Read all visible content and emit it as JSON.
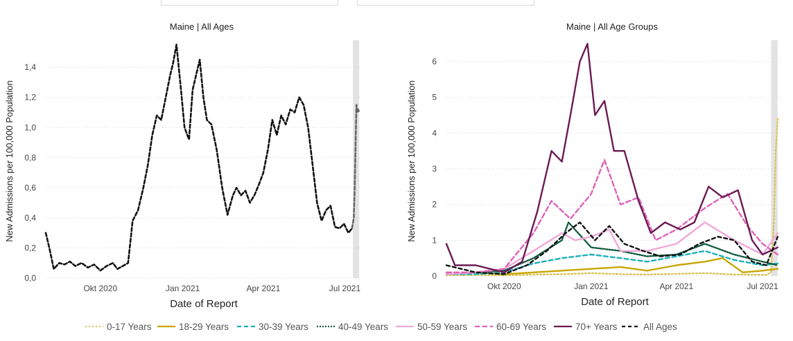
{
  "chart_data": [
    {
      "type": "line",
      "title": "Maine  |  All Ages",
      "xlabel": "Date of Report",
      "ylabel": "New Admissions per 100,000 Population",
      "x_ticks": [
        "Okt 2020",
        "Jan 2021",
        "Apr 2021",
        "Jul 2021"
      ],
      "y_ticks": [
        "0,0",
        "0,2",
        "0,4",
        "0,6",
        "0,8",
        "1,0",
        "1,2",
        "1,4"
      ],
      "ylim": [
        0,
        1.58
      ],
      "x_range": [
        "2020-08-01",
        "2021-07-20"
      ],
      "grid": "horizontal dotted",
      "shaded_region": [
        "2021-07-10",
        "2021-07-17"
      ],
      "series": [
        {
          "color": "#111111",
          "x": [
            "2020-08-01",
            "2020-08-05",
            "2020-08-10",
            "2020-08-16",
            "2020-08-22",
            "2020-08-28",
            "2020-09-03",
            "2020-09-10",
            "2020-09-17",
            "2020-09-24",
            "2020-10-01",
            "2020-10-08",
            "2020-10-15",
            "2020-10-20",
            "2020-10-26",
            "2020-11-01",
            "2020-11-06",
            "2020-11-12",
            "2020-11-18",
            "2020-11-23",
            "2020-11-28",
            "2020-12-03",
            "2020-12-08",
            "2020-12-13",
            "2020-12-18",
            "2020-12-21",
            "2020-12-25",
            "2020-12-30",
            "2021-01-03",
            "2021-01-08",
            "2021-01-12",
            "2021-01-16",
            "2021-01-20",
            "2021-01-24",
            "2021-01-28",
            "2021-02-02",
            "2021-02-08",
            "2021-02-14",
            "2021-02-20",
            "2021-02-26",
            "2021-03-02",
            "2021-03-07",
            "2021-03-12",
            "2021-03-17",
            "2021-03-22",
            "2021-03-27",
            "2021-04-01",
            "2021-04-06",
            "2021-04-11",
            "2021-04-16",
            "2021-04-21",
            "2021-04-26",
            "2021-05-01",
            "2021-05-06",
            "2021-05-11",
            "2021-05-16",
            "2021-05-21",
            "2021-05-26",
            "2021-05-31",
            "2021-06-05",
            "2021-06-10",
            "2021-06-15",
            "2021-06-20",
            "2021-06-25",
            "2021-06-30",
            "2021-07-05",
            "2021-07-09"
          ],
          "y": [
            0.3,
            0.2,
            0.06,
            0.1,
            0.09,
            0.11,
            0.08,
            0.1,
            0.07,
            0.09,
            0.05,
            0.08,
            0.1,
            0.06,
            0.08,
            0.1,
            0.38,
            0.45,
            0.6,
            0.75,
            0.95,
            1.08,
            1.05,
            1.2,
            1.35,
            1.42,
            1.55,
            1.25,
            1.0,
            0.92,
            1.25,
            1.35,
            1.45,
            1.2,
            1.05,
            1.02,
            0.85,
            0.6,
            0.42,
            0.55,
            0.6,
            0.55,
            0.58,
            0.5,
            0.55,
            0.62,
            0.7,
            0.85,
            1.05,
            0.95,
            1.08,
            1.02,
            1.12,
            1.1,
            1.2,
            1.15,
            1.0,
            0.75,
            0.5,
            0.38,
            0.45,
            0.48,
            0.34,
            0.33,
            0.36,
            0.3,
            0.33
          ]
        },
        {
          "color": "#666666",
          "x": [
            "2021-07-09",
            "2021-07-11",
            "2021-07-12",
            "2021-07-13",
            "2021-07-14",
            "2021-07-15",
            "2021-07-16",
            "2021-07-17"
          ],
          "y": [
            0.33,
            0.4,
            0.6,
            0.9,
            1.15,
            1.1,
            1.12,
            1.1
          ]
        }
      ]
    },
    {
      "type": "line",
      "title": "Maine  |  All Age Groups",
      "xlabel": "Date of Report",
      "ylabel": "New Admissions per 100,000 Population",
      "x_ticks": [
        "Okt 2020",
        "Jan 2021",
        "Apr 2021",
        "Jul 2021"
      ],
      "y_ticks": [
        "0",
        "1",
        "2",
        "3",
        "4",
        "5",
        "6"
      ],
      "ylim": [
        0,
        6.6
      ],
      "x_range": [
        "2020-08-01",
        "2021-07-20"
      ],
      "grid": "horizontal dotted",
      "shaded_region": [
        "2021-07-10",
        "2021-07-17"
      ],
      "legend_position": "bottom",
      "series": [
        {
          "name": "0-17 Years",
          "color": "#d8c45a",
          "dash": "2,3",
          "x": [
            "2020-08-01",
            "2020-09-01",
            "2020-10-01",
            "2020-11-01",
            "2020-12-01",
            "2021-01-01",
            "2021-02-01",
            "2021-03-01",
            "2021-04-01",
            "2021-05-01",
            "2021-06-01",
            "2021-07-05",
            "2021-07-10",
            "2021-07-13",
            "2021-07-15",
            "2021-07-17"
          ],
          "y": [
            0.02,
            0.03,
            0.02,
            0.04,
            0.05,
            0.08,
            0.05,
            0.04,
            0.06,
            0.08,
            0.04,
            0.03,
            0.1,
            1.5,
            3.5,
            4.4
          ]
        },
        {
          "name": "18-29 Years",
          "color": "#c9a500",
          "dash": "",
          "x": [
            "2020-08-01",
            "2020-09-01",
            "2020-10-01",
            "2020-11-01",
            "2020-12-01",
            "2021-01-01",
            "2021-02-01",
            "2021-03-01",
            "2021-04-01",
            "2021-05-01",
            "2021-05-20",
            "2021-06-10",
            "2021-07-01",
            "2021-07-17"
          ],
          "y": [
            0.05,
            0.1,
            0.05,
            0.1,
            0.15,
            0.2,
            0.25,
            0.15,
            0.3,
            0.4,
            0.5,
            0.1,
            0.15,
            0.2
          ]
        },
        {
          "name": "30-39 Years",
          "color": "#19b0b8",
          "dash": "6,4",
          "x": [
            "2020-08-01",
            "2020-09-01",
            "2020-10-01",
            "2020-11-01",
            "2020-12-01",
            "2021-01-01",
            "2021-02-01",
            "2021-03-01",
            "2021-04-01",
            "2021-05-01",
            "2021-06-01",
            "2021-07-01",
            "2021-07-17"
          ],
          "y": [
            0.05,
            0.05,
            0.1,
            0.35,
            0.5,
            0.6,
            0.5,
            0.4,
            0.55,
            0.7,
            0.45,
            0.3,
            0.35
          ]
        },
        {
          "name": "40-49 Years",
          "color": "#0f5a3e",
          "dash": "2,2",
          "x": [
            "2020-08-01",
            "2020-09-01",
            "2020-10-01",
            "2020-11-01",
            "2020-12-01",
            "2020-12-08",
            "2021-01-01",
            "2021-02-01",
            "2021-03-01",
            "2021-04-01",
            "2021-05-01",
            "2021-06-01",
            "2021-07-01",
            "2021-07-17"
          ],
          "y": [
            0.05,
            0.1,
            0.15,
            0.5,
            1.0,
            1.5,
            0.8,
            0.7,
            0.55,
            0.6,
            0.9,
            0.6,
            0.4,
            0.3
          ]
        },
        {
          "name": "50-59 Years",
          "color": "#f0a8d8",
          "dash": "",
          "x": [
            "2020-08-01",
            "2020-09-01",
            "2020-10-01",
            "2020-11-01",
            "2020-12-01",
            "2020-12-15",
            "2021-01-01",
            "2021-01-20",
            "2021-02-01",
            "2021-03-01",
            "2021-04-01",
            "2021-05-01",
            "2021-06-01",
            "2021-07-01",
            "2021-07-17"
          ],
          "y": [
            0.05,
            0.1,
            0.2,
            0.7,
            1.2,
            1.0,
            1.1,
            1.3,
            0.7,
            0.7,
            0.9,
            1.5,
            1.0,
            0.6,
            1.2
          ]
        },
        {
          "name": "60-69 Years",
          "color": "#e060b8",
          "dash": "7,4",
          "x": [
            "2020-08-01",
            "2020-09-01",
            "2020-10-01",
            "2020-11-01",
            "2020-11-20",
            "2020-12-10",
            "2021-01-01",
            "2021-01-15",
            "2021-02-01",
            "2021-02-20",
            "2021-03-10",
            "2021-04-01",
            "2021-05-01",
            "2021-05-25",
            "2021-06-15",
            "2021-07-01",
            "2021-07-17"
          ],
          "y": [
            0.1,
            0.1,
            0.2,
            1.2,
            2.1,
            1.6,
            2.3,
            3.25,
            2.0,
            2.2,
            1.0,
            1.3,
            1.9,
            2.3,
            1.4,
            0.9,
            0.6
          ]
        },
        {
          "name": "70+ Years",
          "color": "#6b1a52",
          "dash": "",
          "x": [
            "2020-08-01",
            "2020-08-10",
            "2020-09-01",
            "2020-10-01",
            "2020-10-20",
            "2020-11-05",
            "2020-11-20",
            "2020-12-01",
            "2020-12-10",
            "2020-12-20",
            "2020-12-28",
            "2021-01-05",
            "2021-01-15",
            "2021-01-25",
            "2021-02-05",
            "2021-02-20",
            "2021-03-05",
            "2021-03-20",
            "2021-04-05",
            "2021-04-20",
            "2021-05-05",
            "2021-05-20",
            "2021-06-05",
            "2021-06-20",
            "2021-07-01",
            "2021-07-17"
          ],
          "y": [
            0.9,
            0.3,
            0.3,
            0.1,
            0.4,
            1.8,
            3.5,
            3.2,
            4.5,
            6.0,
            6.5,
            4.5,
            4.9,
            3.5,
            3.5,
            2.1,
            1.2,
            1.5,
            1.3,
            1.5,
            2.5,
            2.2,
            2.4,
            1.0,
            0.6,
            0.8
          ]
        },
        {
          "name": "All Ages",
          "color": "#111111",
          "dash": "5,4",
          "x": [
            "2020-08-01",
            "2020-09-01",
            "2020-10-01",
            "2020-10-25",
            "2020-11-15",
            "2020-12-05",
            "2020-12-20",
            "2021-01-05",
            "2021-01-20",
            "2021-02-05",
            "2021-02-25",
            "2021-03-15",
            "2021-04-05",
            "2021-04-25",
            "2021-05-15",
            "2021-06-01",
            "2021-06-20",
            "2021-07-05",
            "2021-07-17"
          ],
          "y": [
            0.3,
            0.1,
            0.05,
            0.3,
            0.7,
            1.2,
            1.5,
            1.0,
            1.4,
            0.9,
            0.7,
            0.55,
            0.6,
            0.9,
            1.1,
            1.0,
            0.4,
            0.3,
            1.1
          ]
        }
      ]
    }
  ]
}
